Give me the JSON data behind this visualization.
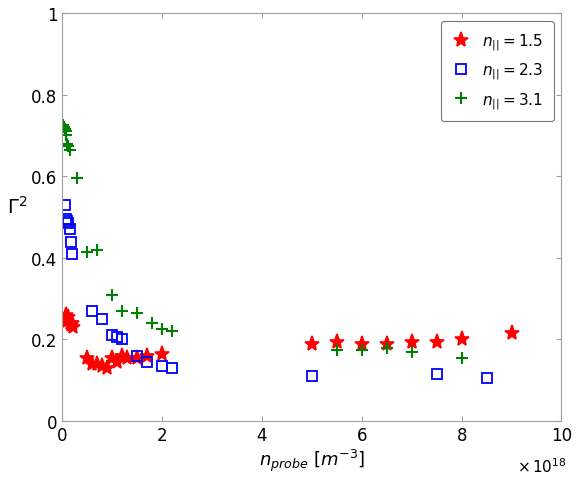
{
  "title": "",
  "xlabel": "n_probe [m^{-3}]",
  "ylabel": "Gamma^2",
  "xlim": [
    0,
    1e+19
  ],
  "ylim": [
    0,
    1.0
  ],
  "xticks": [
    0,
    2e+18,
    4e+18,
    6e+18,
    8e+18,
    1e+19
  ],
  "xtick_labels": [
    "0",
    "2",
    "4",
    "6",
    "8",
    "10"
  ],
  "yticks": [
    0,
    0.2,
    0.4,
    0.6,
    0.8,
    1.0
  ],
  "ytick_labels": [
    "0",
    "0.2",
    "0.4",
    "0.6",
    "0.8",
    "1"
  ],
  "series": [
    {
      "label": "n_{||}=1.5",
      "marker": "*",
      "color": "red",
      "x": [
        5e+16,
        8e+16,
        1e+17,
        1.2e+17,
        1.5e+17,
        1.8e+17,
        2e+17,
        2.2e+17,
        5e+17,
        6e+17,
        7e+17,
        8e+17,
        9e+17,
        1e+18,
        1.1e+18,
        1.2e+18,
        1.3e+18,
        1.5e+18,
        1.7e+18,
        2e+18,
        5e+18,
        5.5e+18,
        6e+18,
        6.5e+18,
        7e+18,
        7.5e+18,
        8e+18,
        9e+18
      ],
      "y": [
        0.25,
        0.26,
        0.245,
        0.255,
        0.24,
        0.235,
        0.24,
        0.23,
        0.155,
        0.14,
        0.14,
        0.135,
        0.13,
        0.155,
        0.145,
        0.16,
        0.155,
        0.155,
        0.16,
        0.165,
        0.19,
        0.195,
        0.19,
        0.19,
        0.195,
        0.195,
        0.2,
        0.215
      ]
    },
    {
      "label": "n_{||}=2.3",
      "marker": "s",
      "color": "blue",
      "x": [
        5e+16,
        7e+16,
        1e+17,
        1.2e+17,
        1.5e+17,
        1.7e+17,
        2e+17,
        6e+17,
        8e+17,
        1e+18,
        1.1e+18,
        1.2e+18,
        1.5e+18,
        1.7e+18,
        2e+18,
        2.2e+18,
        5e+18,
        7.5e+18,
        8.5e+18
      ],
      "y": [
        0.53,
        0.495,
        0.49,
        0.485,
        0.47,
        0.44,
        0.41,
        0.27,
        0.25,
        0.21,
        0.205,
        0.2,
        0.16,
        0.145,
        0.135,
        0.13,
        0.11,
        0.115,
        0.105
      ]
    },
    {
      "label": "n_{||}=3.1",
      "marker": "+",
      "color": "green",
      "x": [
        2e+16,
        4e+16,
        5e+16,
        7e+16,
        8e+16,
        1e+17,
        1.2e+17,
        1.5e+17,
        3e+17,
        5e+17,
        7e+17,
        1e+18,
        1.2e+18,
        1.5e+18,
        1.8e+18,
        2e+18,
        2.2e+18,
        5.5e+18,
        6e+18,
        6.5e+18,
        7e+18,
        8e+18
      ],
      "y": [
        0.725,
        0.72,
        0.715,
        0.71,
        0.7,
        0.68,
        0.675,
        0.665,
        0.595,
        0.415,
        0.42,
        0.31,
        0.27,
        0.265,
        0.24,
        0.225,
        0.22,
        0.175,
        0.175,
        0.18,
        0.17,
        0.155
      ]
    }
  ]
}
